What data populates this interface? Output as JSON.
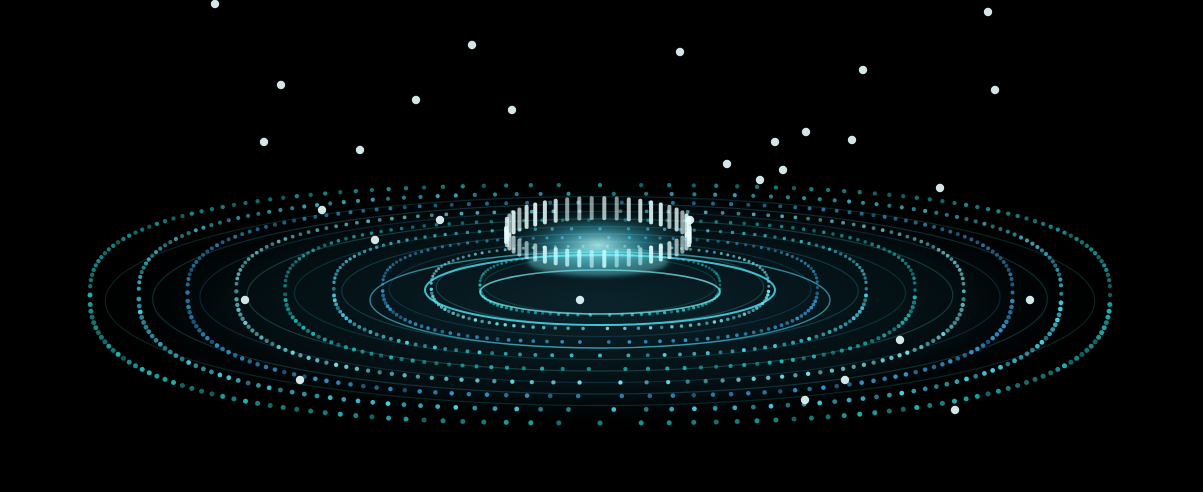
{
  "scene": {
    "kind": "abstract-digital-ring-graphic",
    "background_color": "#000000",
    "palette": {
      "cyan": "#4fe6ff",
      "teal": "#20c8c8",
      "aqua": "#7ff7ff",
      "blue": "#3aa6e8",
      "white": "#e8ffff"
    },
    "ring_count": 9,
    "spike_count": 30
  }
}
